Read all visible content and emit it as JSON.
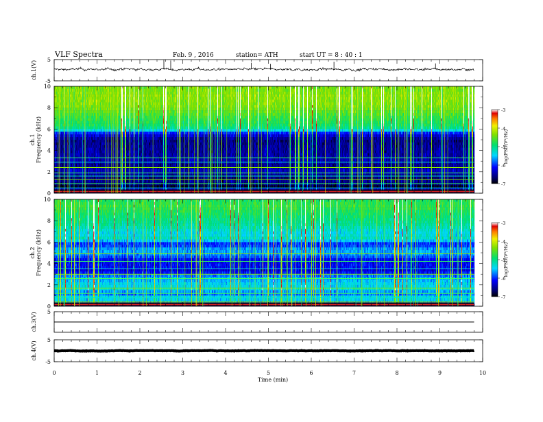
{
  "header": {
    "title": "VLF  Spectra",
    "date": "Feb. 9  , 2016",
    "station": "station= ATH",
    "start": "start  UT  =   8 : 40 : 1"
  },
  "chart_data": [
    {
      "type": "line",
      "ylabel": "ch.1(V)",
      "ylim": [
        -5,
        5
      ],
      "yticks": [
        "5",
        "-5"
      ],
      "xlim": [
        0,
        10
      ],
      "x_end": 9.8,
      "baseline": 0.4,
      "noise": 0.9,
      "spikes": [
        [
          2.56,
          4.8
        ],
        [
          2.72,
          4.6
        ],
        [
          4.6,
          3.5
        ],
        [
          5.05,
          3.0
        ],
        [
          6.53,
          4.0
        ],
        [
          8.9,
          3.2
        ]
      ]
    },
    {
      "type": "heatmap",
      "ylabel": "Frequency  (kHz)",
      "ylabel_channel": "ch.1",
      "ylim": [
        0,
        10
      ],
      "yticks": [
        "10",
        "8",
        "6",
        "4",
        "2",
        "0"
      ],
      "xlim": [
        0,
        10
      ],
      "x_end": 9.8,
      "colorbar": {
        "label": "log(PSD(V²/Hz)",
        "range": [
          -7,
          -3
        ],
        "ticks": [
          "-3",
          "-4",
          "-5",
          "-6",
          "-7"
        ]
      },
      "level_profile": [
        [
          0,
          -6.6
        ],
        [
          0.3,
          -6.2
        ],
        [
          0.6,
          -6.9
        ],
        [
          1.0,
          -6.5
        ],
        [
          1.5,
          -6.7
        ],
        [
          2.0,
          -6.3
        ],
        [
          2.5,
          -6.6
        ],
        [
          3.0,
          -6.4
        ],
        [
          4.0,
          -6.5
        ],
        [
          5.0,
          -6.6
        ],
        [
          5.6,
          -6.1
        ],
        [
          5.9,
          -5.3
        ],
        [
          6.2,
          -4.9
        ],
        [
          7.0,
          -4.7
        ],
        [
          8.0,
          -4.4
        ],
        [
          9.0,
          -4.3
        ],
        [
          10.0,
          -4.4
        ]
      ],
      "tone_lines_khz": [
        0.2,
        0.5,
        0.9,
        1.3,
        1.6,
        1.9,
        2.4,
        2.9,
        3.3
      ]
    },
    {
      "type": "heatmap",
      "ylabel": "Frequency  (kHz)",
      "ylabel_channel": "ch.2",
      "ylim": [
        0,
        10
      ],
      "yticks": [
        "10",
        "8",
        "6",
        "4",
        "2",
        "0"
      ],
      "xlim": [
        0,
        10
      ],
      "x_end": 9.8,
      "colorbar": {
        "label": "log(PSD(V²/Hz)",
        "range": [
          -7,
          -3
        ],
        "ticks": [
          "-3",
          "-4",
          "-5",
          "-6",
          "-7"
        ]
      },
      "level_profile": [
        [
          0,
          -6.7
        ],
        [
          0.4,
          -5.6
        ],
        [
          0.8,
          -5.3
        ],
        [
          1.2,
          -5.9
        ],
        [
          1.6,
          -5.3
        ],
        [
          2.2,
          -5.5
        ],
        [
          2.8,
          -5.7
        ],
        [
          3.3,
          -6.3
        ],
        [
          3.7,
          -6.1
        ],
        [
          4.3,
          -6.2
        ],
        [
          4.8,
          -5.7
        ],
        [
          5.3,
          -5.6
        ],
        [
          5.8,
          -6.1
        ],
        [
          6.3,
          -5.2
        ],
        [
          6.8,
          -5.4
        ],
        [
          7.5,
          -5.1
        ],
        [
          8.5,
          -4.9
        ],
        [
          9.3,
          -4.7
        ],
        [
          10.0,
          -4.8
        ]
      ],
      "tone_lines_khz": [
        0.4,
        0.8,
        1.2,
        1.7,
        2.1,
        2.6,
        3.0,
        3.5,
        4.2,
        4.9
      ]
    },
    {
      "type": "line",
      "ylabel": "ch.3(V)",
      "ylim": [
        -5,
        5
      ],
      "yticks": [
        "5"
      ],
      "xlim": [
        0,
        10
      ],
      "x_end": 9.8,
      "baseline": 0,
      "noise": 0.05,
      "spikes": []
    },
    {
      "type": "line",
      "ylabel": "ch.4(V)",
      "ylim": [
        -5,
        5
      ],
      "yticks": [
        "5",
        "-5"
      ],
      "xlim": [
        0,
        10
      ],
      "x_end": 9.8,
      "baseline": 0,
      "noise": 0.15,
      "spikes": []
    }
  ],
  "x_axis": {
    "label": "Time  (min)",
    "ticks": [
      "0",
      "1",
      "2",
      "3",
      "4",
      "5",
      "6",
      "7",
      "8",
      "9",
      "10"
    ]
  }
}
